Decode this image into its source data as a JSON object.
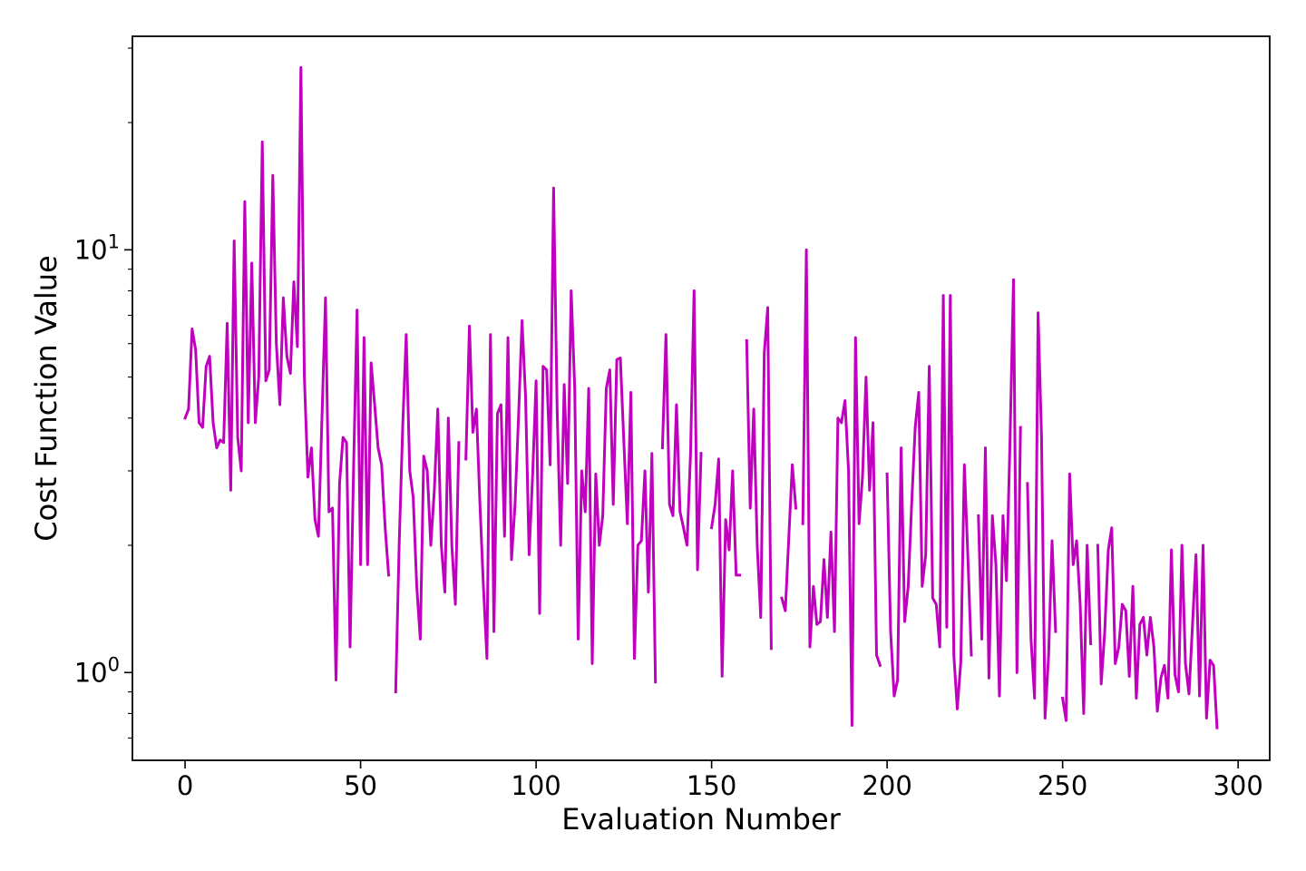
{
  "chart_data": {
    "type": "line",
    "xlabel": "Evaluation Number",
    "ylabel": "Cost Function Value",
    "yscale": "log",
    "xlim": [
      -15,
      309
    ],
    "ylim": [
      0.62,
      32
    ],
    "x_ticks": [
      {
        "value": 0,
        "label": "0"
      },
      {
        "value": 50,
        "label": "50"
      },
      {
        "value": 100,
        "label": "100"
      },
      {
        "value": 150,
        "label": "150"
      },
      {
        "value": 200,
        "label": "200"
      },
      {
        "value": 250,
        "label": "250"
      },
      {
        "value": 300,
        "label": "300"
      }
    ],
    "y_major_ticks": [
      {
        "value": 1,
        "base": "10",
        "exp": "0"
      },
      {
        "value": 10,
        "base": "10",
        "exp": "1"
      }
    ],
    "y_minor_ticks": [
      0.7,
      0.8,
      0.9,
      2,
      3,
      4,
      5,
      6,
      7,
      8,
      9,
      20,
      30
    ],
    "color": "#bf00bf",
    "grid": false,
    "series": [
      {
        "x_start": 0,
        "values": [
          4.0,
          4.2,
          6.5,
          5.8,
          3.9,
          3.8,
          5.3,
          5.6,
          3.9,
          3.4,
          3.55,
          3.5,
          6.7,
          2.7,
          10.5,
          3.6,
          3.0,
          13.0,
          3.9,
          9.3,
          3.9,
          5.0,
          18.0,
          4.9,
          5.2,
          15.0,
          6.0,
          4.3,
          7.7,
          5.6,
          5.1,
          8.4,
          5.9,
          27.0,
          5.0,
          2.9,
          3.4,
          2.3,
          2.1,
          4.0,
          7.7,
          2.4,
          2.45,
          0.96,
          2.8,
          3.6,
          3.5,
          1.15,
          3.0,
          7.2,
          1.8,
          6.2,
          1.8,
          5.4,
          4.3,
          3.4,
          3.1,
          2.2,
          1.7,
          null,
          0.9,
          2.0,
          3.8,
          6.3,
          3.0,
          2.6,
          1.6,
          1.2,
          3.25,
          3.0,
          2.0,
          2.7,
          4.2,
          2.0,
          1.55,
          4.0,
          2.0,
          1.45,
          3.5,
          null,
          3.2,
          6.6,
          3.7,
          4.2,
          2.5,
          1.6,
          1.08,
          6.3,
          1.25,
          4.1,
          4.3,
          2.1,
          6.2,
          1.85,
          2.5,
          4.0,
          6.8,
          4.5,
          1.9,
          2.9,
          4.9,
          1.38,
          5.3,
          5.2,
          3.1,
          14.0,
          4.2,
          2.0,
          4.8,
          2.8,
          8.0,
          4.7,
          1.2,
          3.0,
          2.4,
          4.7,
          1.05,
          2.95,
          2.0,
          2.35,
          4.7,
          5.2,
          2.5,
          5.5,
          5.55,
          3.5,
          2.25,
          4.6,
          1.08,
          2.0,
          2.05,
          3.0,
          1.55,
          3.3,
          0.95,
          null,
          3.4,
          6.3,
          2.5,
          2.35,
          4.3,
          2.4,
          2.2,
          2.0,
          3.3,
          8.0,
          1.75,
          3.3,
          null,
          null,
          2.2,
          2.5,
          3.2,
          0.98,
          2.3,
          1.95,
          3.0,
          1.7,
          1.7,
          null,
          6.1,
          2.45,
          4.2,
          2.0,
          1.35,
          5.7,
          7.3,
          1.14,
          null,
          null,
          1.5,
          1.4,
          2.1,
          3.1,
          2.45,
          null,
          2.25,
          10.0,
          1.15,
          1.6,
          1.3,
          1.32,
          1.85,
          1.35,
          2.15,
          1.25,
          4.0,
          3.9,
          4.4,
          3.0,
          0.75,
          6.2,
          2.25,
          2.9,
          5.0,
          2.7,
          3.9,
          1.1,
          1.04,
          null,
          2.95,
          1.25,
          0.88,
          0.96,
          3.4,
          1.32,
          1.6,
          2.5,
          3.8,
          4.6,
          1.6,
          1.9,
          5.3,
          1.5,
          1.45,
          1.15,
          7.8,
          1.28,
          7.8,
          1.1,
          0.82,
          1.06,
          3.1,
          1.9,
          1.1,
          null,
          2.35,
          1.2,
          3.4,
          0.97,
          2.35,
          1.8,
          0.88,
          2.35,
          1.65,
          3.5,
          8.5,
          1.0,
          3.8,
          null,
          2.8,
          1.2,
          0.87,
          7.1,
          3.6,
          0.78,
          1.1,
          2.05,
          1.25,
          null,
          0.87,
          0.77,
          2.95,
          1.8,
          2.05,
          1.45,
          0.8,
          2.0,
          1.17,
          null,
          2.0,
          0.94,
          1.25,
          1.95,
          2.2,
          1.05,
          1.15,
          1.45,
          1.4,
          0.98,
          1.6,
          0.87,
          1.3,
          1.35,
          1.1,
          1.35,
          1.15,
          0.81,
          0.97,
          1.04,
          0.87,
          1.95,
          0.99,
          0.9,
          2.0,
          1.05,
          0.89,
          1.3,
          1.9,
          0.88,
          2.0,
          0.78,
          1.07,
          1.04,
          0.74
        ]
      }
    ]
  }
}
